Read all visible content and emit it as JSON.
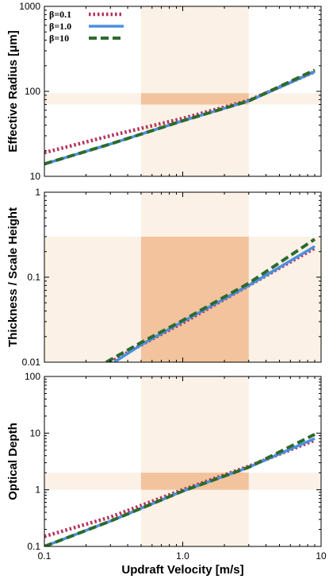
{
  "colors": {
    "band_light": "#fbf1e6",
    "band_dark": "#f2c39d",
    "series": [
      "#b5325a",
      "#4a90e2",
      "#2d6a2d"
    ]
  },
  "x_axis": {
    "label": "Updraft Velocity [m/s]",
    "ticks": [
      "0.1",
      "1.0",
      "10"
    ],
    "xlim": [
      0.1,
      10
    ],
    "scale": "log"
  },
  "legend": {
    "placement": "top-left",
    "entries": [
      "β=0.1",
      "β=1.0",
      "β=10"
    ]
  },
  "chart_data": [
    {
      "type": "line",
      "ylabel": "Effective Radius [μm]",
      "ylim": [
        10,
        1000
      ],
      "yscale": "log",
      "yticks": [
        "10",
        "100",
        "1000"
      ],
      "shaded_x_range": [
        0.5,
        3.0
      ],
      "shaded_y_range": [
        70,
        95
      ],
      "series": [
        {
          "name": "β=0.1",
          "style": "dotted",
          "x": [
            0.1,
            0.3,
            1.0,
            3.0,
            9.0
          ],
          "y": [
            19,
            30,
            48,
            78,
            170
          ]
        },
        {
          "name": "β=1.0",
          "style": "solid",
          "x": [
            0.1,
            0.3,
            1.0,
            3.0,
            9.0
          ],
          "y": [
            14,
            24,
            45,
            77,
            170
          ]
        },
        {
          "name": "β=10",
          "style": "dashed",
          "x": [
            0.1,
            0.3,
            1.0,
            3.0,
            9.0
          ],
          "y": [
            14,
            24,
            45,
            77,
            178
          ]
        }
      ]
    },
    {
      "type": "line",
      "ylabel": "Thickness / Scale Height",
      "ylim": [
        0.01,
        1
      ],
      "yscale": "log",
      "yticks": [
        "0.01",
        "0.1",
        "1"
      ],
      "shaded_x_range": [
        0.5,
        3.0
      ],
      "shaded_y_range": [
        0.01,
        0.3
      ],
      "series": [
        {
          "name": "β=0.1",
          "style": "dotted",
          "x": [
            0.3,
            0.5,
            1.0,
            3.0,
            9.0
          ],
          "y": [
            0.01,
            0.016,
            0.029,
            0.08,
            0.22
          ]
        },
        {
          "name": "β=1.0",
          "style": "solid",
          "x": [
            0.32,
            0.5,
            1.0,
            3.0,
            9.0
          ],
          "y": [
            0.01,
            0.016,
            0.03,
            0.08,
            0.23
          ]
        },
        {
          "name": "β=10",
          "style": "dashed",
          "x": [
            0.28,
            0.5,
            1.0,
            3.0,
            9.0
          ],
          "y": [
            0.01,
            0.017,
            0.031,
            0.085,
            0.28
          ]
        }
      ]
    },
    {
      "type": "line",
      "ylabel": "Optical Depth",
      "ylim": [
        0.1,
        100
      ],
      "yscale": "log",
      "yticks": [
        "0.1",
        "1",
        "10",
        "100"
      ],
      "shaded_x_range": [
        0.5,
        3.0
      ],
      "shaded_y_range": [
        1,
        2
      ],
      "series": [
        {
          "name": "β=0.1",
          "style": "dotted",
          "x": [
            0.1,
            0.3,
            1.0,
            3.0,
            9.0
          ],
          "y": [
            0.15,
            0.33,
            1.0,
            2.6,
            7.5
          ]
        },
        {
          "name": "β=1.0",
          "style": "solid",
          "x": [
            0.1,
            0.3,
            1.0,
            3.0,
            9.0
          ],
          "y": [
            0.1,
            0.28,
            0.95,
            2.5,
            8.0
          ]
        },
        {
          "name": "β=10",
          "style": "dashed",
          "x": [
            0.1,
            0.3,
            1.0,
            3.0,
            9.0
          ],
          "y": [
            0.1,
            0.28,
            0.95,
            2.5,
            9.5
          ]
        }
      ]
    }
  ]
}
